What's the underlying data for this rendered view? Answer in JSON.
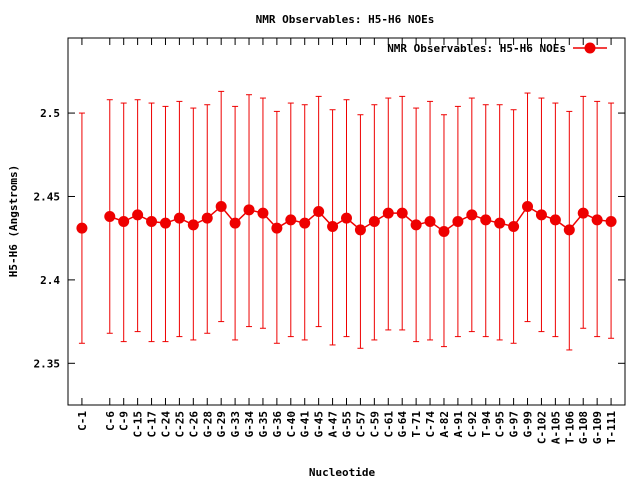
{
  "chart_data": {
    "type": "line",
    "title": "NMR Observables: H5-H6 NOEs",
    "xlabel": "Nucleotide",
    "ylabel": "H5-H6 (Angstroms)",
    "ylim": [
      2.325,
      2.545
    ],
    "yticks": [
      2.35,
      2.4,
      2.45,
      2.5
    ],
    "ytick_labels": [
      "2.35",
      "2.4",
      "2.45",
      "2.5"
    ],
    "grid": false,
    "legend": "top-right",
    "series_color": "#ee0000",
    "categories": [
      "C-1",
      "C-6",
      "C-9",
      "C-15",
      "C-17",
      "C-24",
      "C-25",
      "C-26",
      "G-28",
      "G-29",
      "G-33",
      "G-34",
      "G-35",
      "G-36",
      "C-40",
      "G-41",
      "G-45",
      "A-47",
      "G-55",
      "C-57",
      "C-59",
      "C-61",
      "G-64",
      "T-71",
      "C-74",
      "A-82",
      "A-91",
      "C-92",
      "T-94",
      "C-95",
      "G-97",
      "G-99",
      "C-102",
      "A-105",
      "T-106",
      "G-108",
      "G-109",
      "T-111"
    ],
    "category_positions": [
      1,
      3,
      4,
      5,
      6,
      7,
      8,
      9,
      10,
      11,
      12,
      13,
      14,
      15,
      16,
      17,
      18,
      19,
      20,
      21,
      22,
      23,
      24,
      25,
      26,
      27,
      28,
      29,
      30,
      31,
      32,
      33,
      34,
      35,
      36,
      37,
      38,
      39
    ],
    "series": [
      {
        "name": "NMR Observables: H5-H6 NOEs",
        "values": [
          2.431,
          2.438,
          2.435,
          2.439,
          2.435,
          2.434,
          2.437,
          2.433,
          2.437,
          2.444,
          2.434,
          2.442,
          2.44,
          2.431,
          2.436,
          2.434,
          2.441,
          2.432,
          2.437,
          2.43,
          2.435,
          2.44,
          2.44,
          2.433,
          2.435,
          2.429,
          2.435,
          2.439,
          2.436,
          2.434,
          2.432,
          2.444,
          2.439,
          2.436,
          2.43,
          2.44,
          2.436,
          2.435
        ],
        "err_low": [
          2.362,
          2.368,
          2.363,
          2.369,
          2.363,
          2.363,
          2.366,
          2.364,
          2.368,
          2.375,
          2.364,
          2.372,
          2.371,
          2.362,
          2.366,
          2.364,
          2.372,
          2.361,
          2.366,
          2.359,
          2.364,
          2.37,
          2.37,
          2.363,
          2.364,
          2.36,
          2.366,
          2.369,
          2.366,
          2.364,
          2.362,
          2.375,
          2.369,
          2.366,
          2.358,
          2.371,
          2.366,
          2.365
        ],
        "err_high": [
          2.5,
          2.508,
          2.506,
          2.508,
          2.506,
          2.504,
          2.507,
          2.503,
          2.505,
          2.513,
          2.504,
          2.511,
          2.509,
          2.501,
          2.506,
          2.505,
          2.51,
          2.502,
          2.508,
          2.499,
          2.505,
          2.509,
          2.51,
          2.503,
          2.507,
          2.499,
          2.504,
          2.509,
          2.505,
          2.505,
          2.502,
          2.512,
          2.509,
          2.506,
          2.501,
          2.51,
          2.507,
          2.506
        ]
      }
    ]
  }
}
